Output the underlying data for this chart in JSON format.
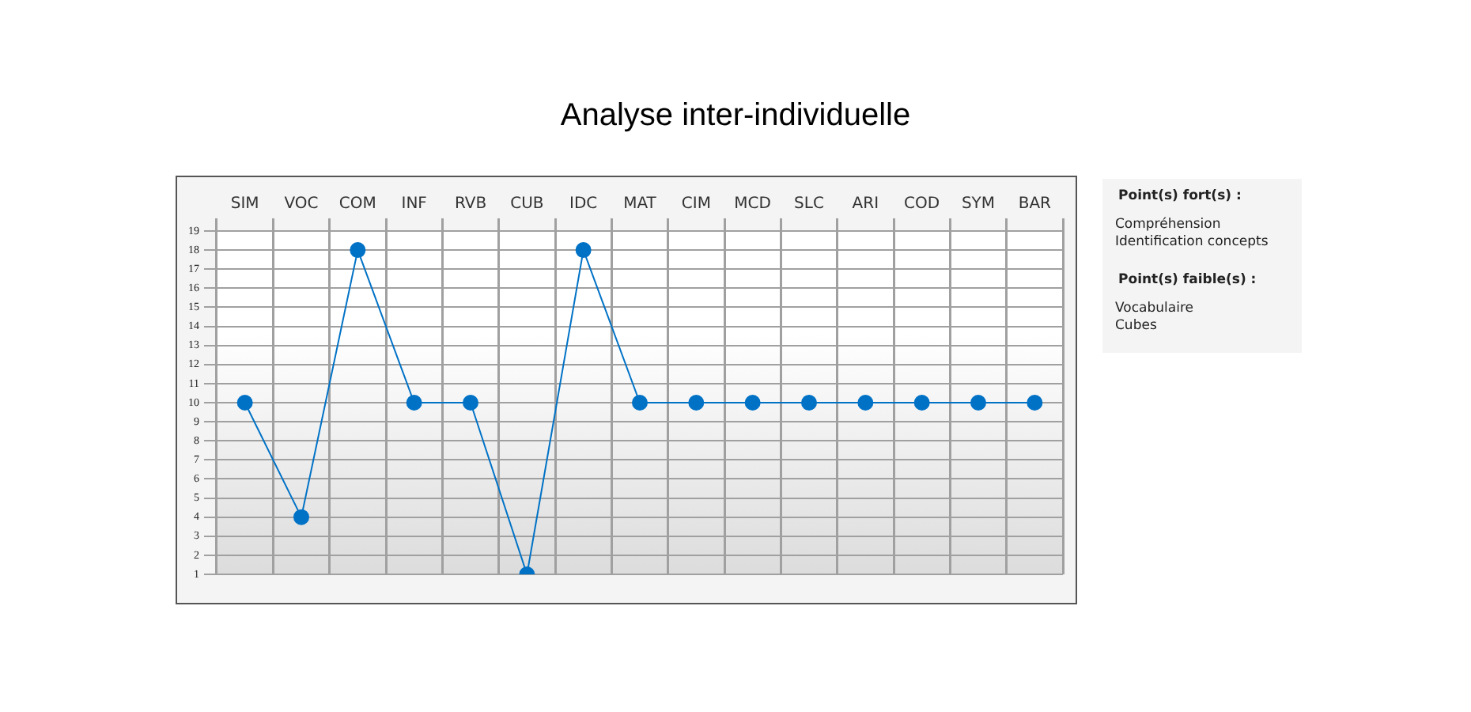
{
  "chart_data": {
    "type": "line",
    "title": "Analyse inter-individuelle",
    "categories": [
      "SIM",
      "VOC",
      "COM",
      "INF",
      "RVB",
      "CUB",
      "IDC",
      "MAT",
      "CIM",
      "MCD",
      "SLC",
      "ARI",
      "COD",
      "SYM",
      "BAR"
    ],
    "series": [
      {
        "color": "#0072c6",
        "values": [
          10,
          4,
          18,
          10,
          10,
          1,
          18,
          10,
          10,
          10,
          10,
          10,
          10,
          10,
          10
        ]
      }
    ],
    "ylim": [
      1,
      19
    ],
    "yticks": [
      1,
      2,
      3,
      4,
      5,
      6,
      7,
      8,
      9,
      10,
      11,
      12,
      13,
      14,
      15,
      16,
      17,
      18,
      19
    ],
    "grid": true,
    "legend": false,
    "marker": "circle",
    "line_style": "solid",
    "annotations": [
      "Point(s) fort(s) :",
      "Compréhension",
      "Identification concepts",
      "Point(s) faible(s) :",
      "Vocabulaire",
      "Cubes"
    ]
  }
}
